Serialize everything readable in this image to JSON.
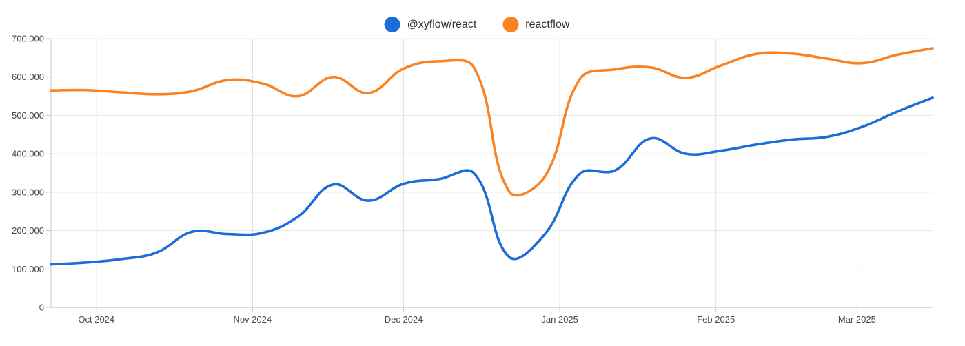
{
  "chart_data": {
    "type": "line",
    "title": "",
    "xlabel": "",
    "ylabel": "",
    "ylim": [
      0,
      700000
    ],
    "grid": true,
    "legend_position": "top-center",
    "x_dates": [
      "2024-09-22",
      "2024-09-29",
      "2024-10-06",
      "2024-10-13",
      "2024-10-20",
      "2024-10-27",
      "2024-11-03",
      "2024-11-10",
      "2024-11-17",
      "2024-11-24",
      "2024-12-01",
      "2024-12-08",
      "2024-12-15",
      "2024-12-22",
      "2024-12-29",
      "2025-01-05",
      "2025-01-12",
      "2025-01-19",
      "2025-01-26",
      "2025-02-02",
      "2025-02-09",
      "2025-02-16",
      "2025-02-23",
      "2025-03-02",
      "2025-03-09",
      "2025-03-16"
    ],
    "series": [
      {
        "name": "@xyflow/react",
        "color": "#1b6ed6",
        "values": [
          112000,
          117000,
          126000,
          143000,
          197000,
          191000,
          194000,
          236000,
          320000,
          278000,
          322000,
          334000,
          349000,
          131000,
          190000,
          348000,
          357000,
          440000,
          400000,
          408000,
          424000,
          437000,
          444000,
          470000,
          510000,
          546000
        ]
      },
      {
        "name": "reactflow",
        "color": "#fa8220",
        "values": [
          565000,
          566000,
          560000,
          555000,
          563000,
          592000,
          583000,
          550000,
          600000,
          558000,
          622000,
          641000,
          624000,
          301000,
          340000,
          595000,
          620000,
          625000,
          598000,
          630000,
          660000,
          661000,
          648000,
          636000,
          658000,
          675000
        ]
      }
    ],
    "y_ticks": [
      {
        "value": 0,
        "label": "0"
      },
      {
        "value": 100000,
        "label": "100,000"
      },
      {
        "value": 200000,
        "label": "200,000"
      },
      {
        "value": 300000,
        "label": "300,000"
      },
      {
        "value": 400000,
        "label": "400,000"
      },
      {
        "value": 500000,
        "label": "500,000"
      },
      {
        "value": 600000,
        "label": "600,000"
      },
      {
        "value": 700000,
        "label": "700,000"
      }
    ],
    "x_ticks": [
      {
        "date": "2024-10-01",
        "label": "Oct 2024"
      },
      {
        "date": "2024-11-01",
        "label": "Nov 2024"
      },
      {
        "date": "2024-12-01",
        "label": "Dec 2024"
      },
      {
        "date": "2025-01-01",
        "label": "Jan 2025"
      },
      {
        "date": "2025-02-01",
        "label": "Feb 2025"
      },
      {
        "date": "2025-03-01",
        "label": "Mar 2025"
      }
    ],
    "colors": {
      "background": "#ffffff",
      "h_gridline": "#e8e8e8",
      "v_gridline": "#dedede",
      "y_axis_line": "#c8c8c8",
      "x_axis_line": "#b8b8b8",
      "tick_mark": "#c4c4c4",
      "tick_text": "#484848"
    }
  }
}
